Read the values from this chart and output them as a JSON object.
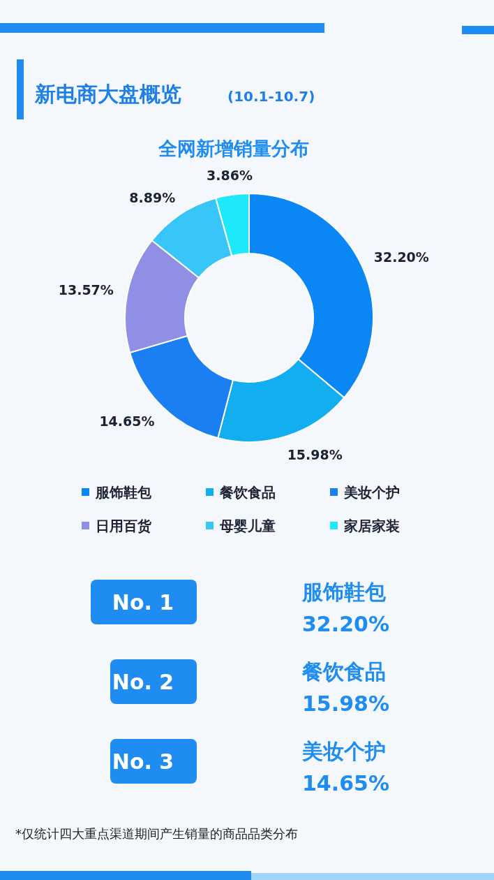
{
  "chart_data": {
    "type": "donut",
    "title": "全网新增销量分布",
    "categories": [
      "服饰鞋包",
      "餐饮食品",
      "美妆个护",
      "日用百货",
      "母婴儿童",
      "家居家装"
    ],
    "values": [
      32.2,
      15.98,
      14.65,
      13.57,
      8.89,
      3.86
    ],
    "value_labels": [
      "32.20%",
      "15.98%",
      "14.65%",
      "13.57%",
      "8.89%",
      "3.86%"
    ],
    "colors": [
      "#0a86f5",
      "#12aef0",
      "#1a7ff0",
      "#8f8fe6",
      "#38c6f8",
      "#1ee9fa"
    ],
    "legend": "bottom",
    "annotations": [
      "新电商大盘概览",
      "(10.1-10.7)",
      "No. 1",
      "服饰鞋包",
      "32.20%",
      "No. 2",
      "餐饮食品",
      "15.98%",
      "No. 3",
      "美妆个护",
      "14.65%",
      "*仅统计四大重点渠道期间产生销量的商品品类分布"
    ]
  }
}
